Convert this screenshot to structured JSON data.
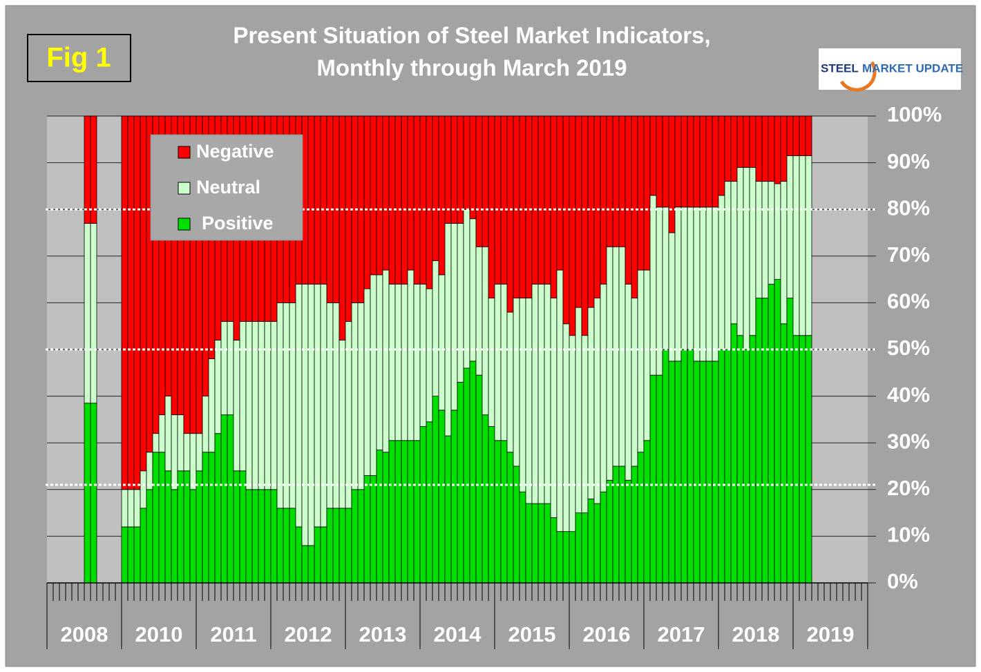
{
  "chart_data": {
    "type": "stacked_bar",
    "title": [
      "Present Situation of Steel Market Indicators,",
      "Monthly through March 2019"
    ],
    "figure_label": "Fig 1",
    "logo": [
      "STEEL",
      "MARKET UPDATE"
    ],
    "year_labels": [
      "2008",
      "2010",
      "2011",
      "2012",
      "2013",
      "2014",
      "2015",
      "2016",
      "2017",
      "2018",
      "2019"
    ],
    "ylim": [
      0,
      100
    ],
    "yticks": [
      {
        "value": 0,
        "label": "0%"
      },
      {
        "value": 10,
        "label": "10%"
      },
      {
        "value": 20,
        "label": "20%"
      },
      {
        "value": 30,
        "label": "30%"
      },
      {
        "value": 40,
        "label": "40%"
      },
      {
        "value": 50,
        "label": "50%"
      },
      {
        "value": 60,
        "label": "60%"
      },
      {
        "value": 70,
        "label": "70%"
      },
      {
        "value": 80,
        "label": "80%"
      },
      {
        "value": 90,
        "label": "90%"
      },
      {
        "value": 100,
        "label": "100%"
      }
    ],
    "reference_lines": [
      80,
      50,
      21
    ],
    "grid": true,
    "legend": "top-left",
    "series": [
      {
        "name": "Negative",
        "color": "#ff0000",
        "values": [
          null,
          null,
          null,
          null,
          null,
          null,
          23,
          23,
          null,
          null,
          null,
          null,
          80,
          80,
          80,
          76,
          72,
          68,
          64,
          60,
          64,
          64,
          68,
          68,
          68,
          60,
          52,
          48,
          44,
          44,
          48,
          44,
          44,
          44,
          44,
          44,
          44,
          40,
          40,
          40,
          36,
          36,
          36,
          36,
          36,
          40,
          40,
          48,
          44,
          40,
          40,
          37,
          34,
          34,
          33,
          36,
          36,
          36,
          33,
          36,
          36,
          37,
          31,
          34,
          23,
          23,
          23,
          20,
          22,
          28,
          28,
          39,
          36,
          36,
          42,
          39,
          39,
          39,
          36,
          36,
          36,
          39,
          33,
          44.5,
          47,
          41,
          47,
          41,
          39,
          36,
          28,
          28,
          28,
          36,
          39,
          33,
          33,
          17,
          19.5,
          19.5,
          25,
          19.5,
          19.5,
          19.5,
          19.5,
          19.5,
          19.5,
          19.5,
          17,
          14,
          14,
          11,
          11,
          11,
          14,
          14,
          14,
          14.5,
          14,
          8.5,
          8.5,
          8.5,
          8.5,
          null,
          null,
          null,
          null,
          null,
          null,
          null,
          null,
          null
        ]
      },
      {
        "name": "Neutral",
        "color": "#ccffcc",
        "values": [
          null,
          null,
          null,
          null,
          null,
          null,
          38.5,
          38.5,
          null,
          null,
          null,
          null,
          8,
          8,
          8,
          8,
          8,
          4,
          8,
          16,
          16,
          12,
          8,
          12,
          8,
          12,
          20,
          20,
          20,
          20,
          28,
          32,
          36,
          36,
          36,
          36,
          36,
          44,
          44,
          44,
          52,
          56,
          56,
          52,
          52,
          44,
          44,
          36,
          40,
          40,
          40,
          40,
          43,
          37.5,
          39,
          33.5,
          33.5,
          33.5,
          36.5,
          33.5,
          30.5,
          28.5,
          29,
          29,
          45.5,
          40,
          34,
          34,
          30.5,
          27.5,
          36,
          27.5,
          33.5,
          33.5,
          30,
          36,
          41.5,
          44,
          47,
          47,
          47,
          47,
          56,
          44.5,
          42,
          44,
          38,
          41,
          44,
          44.5,
          50,
          47,
          47,
          42,
          36,
          39,
          36.5,
          38.5,
          36,
          30.5,
          27.5,
          33,
          30.5,
          30.5,
          33,
          33,
          33,
          33,
          33,
          36,
          30.5,
          36,
          39,
          36,
          25,
          25,
          22,
          20.5,
          30.5,
          30.5,
          38.5,
          38.5,
          38.5,
          null,
          null,
          null,
          null,
          null,
          null,
          null,
          null,
          null
        ]
      },
      {
        "name": "Positive",
        "color": "#00e000",
        "values": [
          null,
          null,
          null,
          null,
          null,
          null,
          38.5,
          38.5,
          null,
          null,
          null,
          null,
          12,
          12,
          12,
          16,
          20,
          28,
          28,
          24,
          20,
          24,
          24,
          20,
          24,
          28,
          28,
          32,
          36,
          36,
          24,
          24,
          20,
          20,
          20,
          20,
          20,
          16,
          16,
          16,
          12,
          8,
          8,
          12,
          12,
          16,
          16,
          16,
          16,
          20,
          20,
          23,
          23,
          28.5,
          28,
          30.5,
          30.5,
          30.5,
          30.5,
          30.5,
          33.5,
          34.5,
          40,
          37,
          31.5,
          37,
          43,
          46,
          47.5,
          44.5,
          36,
          33.5,
          30.5,
          30.5,
          28,
          25,
          19.5,
          17,
          17,
          17,
          17,
          14,
          11,
          11,
          11,
          15,
          15,
          18,
          17,
          19.5,
          22,
          25,
          25,
          22,
          25,
          28,
          30.5,
          44.5,
          44.5,
          50,
          47.5,
          47.5,
          50,
          50,
          47.5,
          47.5,
          47.5,
          47.5,
          50,
          50,
          55.5,
          53,
          50,
          53,
          61,
          61,
          64,
          65,
          55.5,
          61,
          53,
          53,
          53,
          null,
          null,
          null,
          null,
          null,
          null,
          null,
          null,
          null
        ]
      }
    ]
  }
}
